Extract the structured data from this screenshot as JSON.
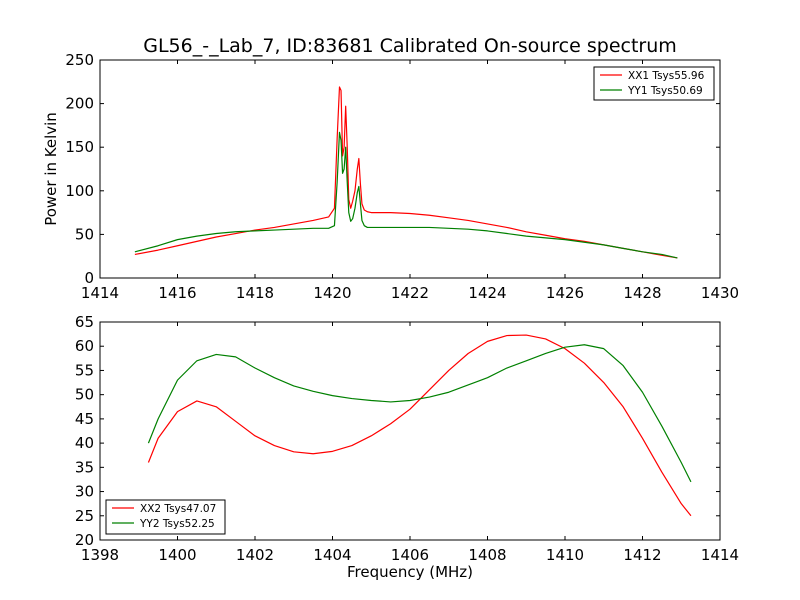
{
  "figure_title": "GL56_-_Lab_7, ID:83681 Calibrated On-source spectrum",
  "chart_data": [
    {
      "type": "line",
      "title": "GL56_-_Lab_7, ID:83681 Calibrated On-source spectrum",
      "xlabel": "",
      "ylabel": "Power in Kelvin",
      "xlim": [
        1414,
        1430
      ],
      "ylim": [
        0,
        250
      ],
      "xticks": [
        "1414",
        "1416",
        "1418",
        "1420",
        "1422",
        "1424",
        "1426",
        "1428",
        "1430"
      ],
      "yticks": [
        "0",
        "50",
        "100",
        "150",
        "200",
        "250"
      ],
      "grid": false,
      "legend_position": "top-right",
      "series": [
        {
          "name": "XX1 Tsys55.96",
          "color": "#ff0000",
          "x": [
            1414.9,
            1415.5,
            1416.0,
            1416.5,
            1417.0,
            1417.5,
            1418.0,
            1418.5,
            1419.0,
            1419.5,
            1419.9,
            1420.05,
            1420.12,
            1420.18,
            1420.22,
            1420.26,
            1420.3,
            1420.34,
            1420.38,
            1420.42,
            1420.47,
            1420.52,
            1420.58,
            1420.64,
            1420.68,
            1420.72,
            1420.76,
            1420.82,
            1420.9,
            1421.0,
            1421.5,
            1422.0,
            1422.5,
            1423.0,
            1423.5,
            1424.0,
            1424.5,
            1425.0,
            1425.5,
            1426.0,
            1426.5,
            1427.0,
            1427.5,
            1428.0,
            1428.5,
            1428.9
          ],
          "y": [
            27,
            32,
            37,
            42,
            47,
            51,
            55,
            58,
            62,
            66,
            70,
            80,
            160,
            219,
            215,
            140,
            150,
            197,
            150,
            90,
            80,
            88,
            100,
            125,
            137,
            108,
            85,
            78,
            76,
            75,
            75,
            74,
            72,
            69,
            66,
            62,
            58,
            53,
            49,
            45,
            42,
            38,
            34,
            30,
            26,
            23
          ]
        },
        {
          "name": "YY1 Tsys50.69",
          "color": "#008000",
          "x": [
            1414.9,
            1415.5,
            1416.0,
            1416.5,
            1417.0,
            1417.5,
            1418.0,
            1418.5,
            1419.0,
            1419.5,
            1419.9,
            1420.05,
            1420.12,
            1420.18,
            1420.22,
            1420.26,
            1420.3,
            1420.34,
            1420.38,
            1420.42,
            1420.47,
            1420.52,
            1420.58,
            1420.64,
            1420.68,
            1420.72,
            1420.76,
            1420.82,
            1420.9,
            1421.0,
            1421.5,
            1422.0,
            1422.5,
            1423.0,
            1423.5,
            1424.0,
            1424.5,
            1425.0,
            1425.5,
            1426.0,
            1426.5,
            1427.0,
            1427.5,
            1428.0,
            1428.5,
            1428.9
          ],
          "y": [
            30,
            37,
            44,
            48,
            51,
            53,
            54,
            55,
            56,
            57,
            57,
            60,
            110,
            167,
            158,
            120,
            125,
            150,
            110,
            75,
            65,
            68,
            80,
            98,
            105,
            85,
            66,
            60,
            58,
            58,
            58,
            58,
            58,
            57,
            56,
            54,
            51,
            48,
            46,
            44,
            41,
            38,
            34,
            30,
            27,
            23
          ]
        }
      ]
    },
    {
      "type": "line",
      "title": "",
      "xlabel": "Frequency (MHz)",
      "ylabel": "",
      "xlim": [
        1398,
        1414
      ],
      "ylim": [
        20,
        65
      ],
      "xticks": [
        "1398",
        "1400",
        "1402",
        "1404",
        "1406",
        "1408",
        "1410",
        "1412",
        "1414"
      ],
      "yticks": [
        "20",
        "25",
        "30",
        "35",
        "40",
        "45",
        "50",
        "55",
        "60",
        "65"
      ],
      "grid": false,
      "legend_position": "bottom-left",
      "series": [
        {
          "name": "XX2 Tsys47.07",
          "color": "#ff0000",
          "x": [
            1399.25,
            1399.5,
            1400.0,
            1400.5,
            1401.0,
            1401.5,
            1402.0,
            1402.5,
            1403.0,
            1403.5,
            1404.0,
            1404.5,
            1405.0,
            1405.5,
            1406.0,
            1406.5,
            1407.0,
            1407.5,
            1408.0,
            1408.5,
            1409.0,
            1409.5,
            1410.0,
            1410.5,
            1411.0,
            1411.5,
            1412.0,
            1412.5,
            1413.0,
            1413.25
          ],
          "y": [
            36,
            41,
            46.5,
            48.7,
            47.5,
            44.5,
            41.5,
            39.5,
            38.2,
            37.8,
            38.3,
            39.5,
            41.5,
            44,
            47,
            51,
            55,
            58.5,
            61,
            62.2,
            62.3,
            61.5,
            59.5,
            56.5,
            52.5,
            47.5,
            41,
            34,
            27.5,
            25
          ]
        },
        {
          "name": "YY2 Tsys52.25",
          "color": "#008000",
          "x": [
            1399.25,
            1399.5,
            1400.0,
            1400.5,
            1401.0,
            1401.5,
            1402.0,
            1402.5,
            1403.0,
            1403.5,
            1404.0,
            1404.5,
            1405.0,
            1405.5,
            1406.0,
            1406.5,
            1407.0,
            1407.5,
            1408.0,
            1408.5,
            1409.0,
            1409.5,
            1410.0,
            1410.5,
            1411.0,
            1411.5,
            1412.0,
            1412.5,
            1413.0,
            1413.25
          ],
          "y": [
            40,
            45,
            53,
            57,
            58.3,
            57.8,
            55.5,
            53.5,
            51.8,
            50.7,
            49.8,
            49.2,
            48.8,
            48.5,
            48.8,
            49.5,
            50.5,
            52,
            53.5,
            55.5,
            57,
            58.5,
            59.8,
            60.3,
            59.5,
            56,
            50.5,
            43.5,
            36,
            32
          ]
        }
      ]
    }
  ]
}
